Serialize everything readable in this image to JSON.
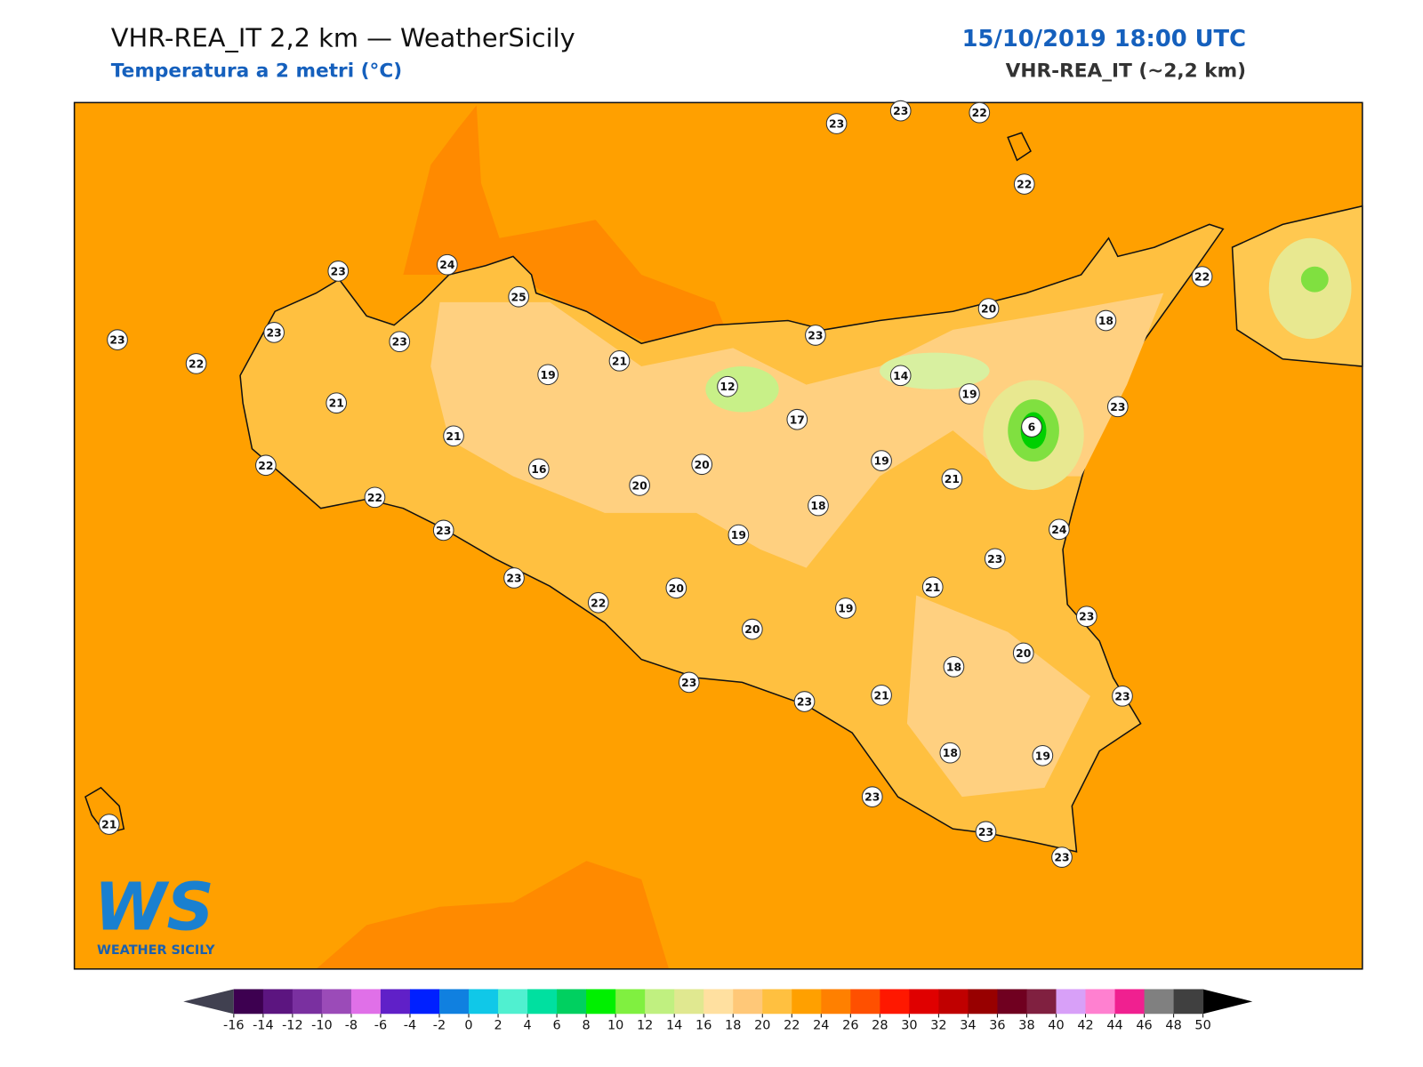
{
  "header": {
    "title": "VHR-REA_IT 2,2 km — WeatherSicily",
    "subtitle": "Temperatura a 2 metri (°C)",
    "date": "15/10/2019 18:00 UTC",
    "model": "VHR-REA_IT (~2,2 km)"
  },
  "logo": {
    "mark": "WS",
    "text": "WEATHER SICILY"
  },
  "stations": [
    23,
    23,
    22,
    22,
    24,
    23,
    25,
    23,
    23,
    23,
    22,
    21,
    19,
    21,
    12,
    23,
    20,
    18,
    22,
    14,
    19,
    23,
    6,
    17,
    21,
    22,
    22,
    16,
    20,
    20,
    19,
    21,
    18,
    23,
    19,
    24,
    23,
    23,
    22,
    20,
    21,
    19,
    23,
    20,
    18,
    20,
    23,
    23,
    21,
    23,
    18,
    19,
    23,
    23,
    23,
    21
  ],
  "colorbar": {
    "ticks": [
      -16,
      -14,
      -12,
      -10,
      -8,
      -6,
      -4,
      -2,
      0,
      2,
      4,
      6,
      8,
      10,
      12,
      14,
      16,
      18,
      20,
      22,
      24,
      26,
      28,
      30,
      32,
      34,
      36,
      38,
      40,
      42,
      44,
      46,
      48,
      50
    ],
    "colors": [
      "#3d0050",
      "#5c1580",
      "#7a30a0",
      "#9b4bb8",
      "#e070e8",
      "#6020c8",
      "#0020ff",
      "#1080e0",
      "#10c8e8",
      "#50f0d0",
      "#00e0a0",
      "#00d060",
      "#00f000",
      "#80f040",
      "#c0f080",
      "#e0e890",
      "#ffe0a0",
      "#ffc878",
      "#ffc040",
      "#ffa000",
      "#ff8000",
      "#ff5000",
      "#ff1800",
      "#e00000",
      "#c00000",
      "#980000",
      "#700020",
      "#802040",
      "#d8a0f8",
      "#ff80d0",
      "#f02090",
      "#808080",
      "#404040"
    ],
    "under": "#404050",
    "over": "#000000"
  }
}
